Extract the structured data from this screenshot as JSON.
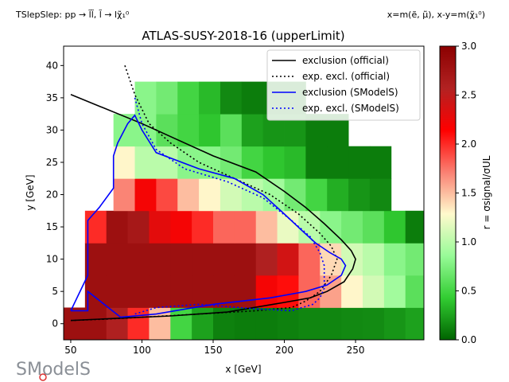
{
  "header": {
    "process": "TSlepSlep: pp → l̃l̃, l̃ → lχ̃₁⁰",
    "axis_definition": "x=m(ẽ, μ̃), x-y=m(χ̃₁⁰)"
  },
  "logo_text": "SModelS",
  "chart_data": {
    "type": "heatmap",
    "title": "ATLAS-SUSY-2018-16 (upperLimit)",
    "xlabel": "x [GeV]",
    "ylabel": "y [GeV]",
    "xlim": [
      45,
      298
    ],
    "ylim": [
      -2.5,
      43
    ],
    "xticks": [
      50,
      100,
      150,
      200,
      250
    ],
    "yticks": [
      0,
      5,
      10,
      15,
      20,
      25,
      30,
      35,
      40
    ],
    "colorbar": {
      "label": "r = σsignal/σUL",
      "range": [
        0.0,
        3.0
      ],
      "ticks": [
        "0.0",
        "0.5",
        "1.0",
        "1.5",
        "2.0",
        "2.5",
        "3.0"
      ],
      "colormap": [
        "#006400",
        "#32cd32",
        "#98fb98",
        "#fffacd",
        "#fa8072",
        "#ff0000",
        "#b22222",
        "#8b0000"
      ]
    },
    "cells": {
      "y_bins": [
        0,
        5,
        10,
        15,
        20,
        25,
        30,
        35
      ],
      "y_height": 5,
      "x_width": 15,
      "rows": [
        {
          "y": 0,
          "x_start": 45,
          "r": [
            2.8,
            2.8,
            2.6,
            2.0,
            1.5,
            0.5,
            0.25,
            0.12,
            0.1,
            0.1,
            0.12,
            0.14,
            0.14,
            0.15,
            0.16,
            0.2,
            0.25
          ]
        },
        {
          "y": 5,
          "x_start": 60,
          "r": [
            2.8,
            2.8,
            2.8,
            2.8,
            2.8,
            2.8,
            2.8,
            2.8,
            2.2,
            2.1,
            1.8,
            1.6,
            1.3,
            1.1,
            0.9,
            0.6,
            0.4
          ]
        },
        {
          "y": 10,
          "x_start": 60,
          "r": [
            2.8,
            2.8,
            2.8,
            2.8,
            2.8,
            2.8,
            2.8,
            2.8,
            2.6,
            2.4,
            1.8,
            1.4,
            1.1,
            1.0,
            0.8,
            0.7,
            0.5
          ]
        },
        {
          "y": 15,
          "x_start": 60,
          "r": [
            2.0,
            2.8,
            2.7,
            2.3,
            2.2,
            2.0,
            1.8,
            1.8,
            1.5,
            1.2,
            1.0,
            0.8,
            0.7,
            0.6,
            0.4,
            0.1
          ]
        },
        {
          "y": 20,
          "x_start": 80,
          "r": [
            1.7,
            2.2,
            1.9,
            1.5,
            1.3,
            1.1,
            1.0,
            0.9,
            0.7,
            0.5,
            0.3,
            0.2,
            0.15
          ]
        },
        {
          "y": 25,
          "x_start": 80,
          "r": [
            1.3,
            1.0,
            1.0,
            0.8,
            0.8,
            0.7,
            0.5,
            0.4,
            0.35,
            0.1,
            0.1,
            0.1,
            0.1
          ]
        },
        {
          "y": 30,
          "x_start": 80,
          "r": [
            0.8,
            0.8,
            0.6,
            0.5,
            0.4,
            0.6,
            0.25,
            0.2,
            0.2,
            0.1,
            0.1
          ]
        },
        {
          "y": 35,
          "x_start": 95,
          "r": [
            0.8,
            0.7,
            0.5,
            0.35,
            0.15,
            0.1,
            0.1,
            0.1
          ]
        }
      ]
    },
    "series": [
      {
        "name": "exclusion (official)",
        "color": "#000000",
        "style": "solid",
        "x": [
          50,
          100,
          150,
          180,
          200,
          215,
          228,
          240,
          247,
          250,
          248,
          242,
          230,
          218,
          200,
          160,
          120,
          80,
          50
        ],
        "y": [
          35.5,
          31,
          26,
          23.5,
          20.5,
          18,
          15.5,
          13,
          11.3,
          10,
          8.5,
          6.5,
          5,
          4,
          3.3,
          1.8,
          1.2,
          0.8,
          0.5
        ]
      },
      {
        "name": "exp. excl. (official)",
        "color": "#000000",
        "style": "dotted",
        "x": [
          88,
          95,
          105,
          120,
          140,
          165,
          190,
          210,
          225,
          233,
          237,
          233,
          225,
          215,
          205,
          180,
          140,
          100,
          75,
          50
        ],
        "y": [
          40,
          35.5,
          31,
          28,
          25,
          22.5,
          20,
          17,
          14,
          12,
          10,
          7.5,
          5,
          3.5,
          2.5,
          2,
          1.5,
          1,
          0.7,
          0.5
        ]
      },
      {
        "name": "exclusion (SModelS)",
        "color": "#0000ff",
        "style": "solid",
        "x": [
          50,
          62,
          62,
          70,
          80,
          80,
          83,
          90,
          95,
          100,
          110,
          140,
          165,
          185,
          200,
          212,
          222,
          232,
          240,
          243,
          240,
          230,
          215,
          190,
          150,
          110,
          85,
          62,
          62,
          50
        ],
        "y": [
          2,
          7.5,
          16,
          18,
          21,
          26,
          28,
          31,
          32.3,
          30,
          26.5,
          24,
          22.5,
          20,
          17,
          14.5,
          12.5,
          11,
          10,
          9,
          7.5,
          6,
          5,
          4,
          3,
          1.5,
          1,
          5,
          2,
          2
        ]
      },
      {
        "name": "exp. excl. (SModelS)",
        "color": "#0000ff",
        "style": "dotted",
        "x": [
          95,
          100,
          110,
          130,
          160,
          185,
          205,
          218,
          225,
          228,
          228,
          225,
          220,
          205,
          180,
          140,
          110,
          95
        ],
        "y": [
          35,
          31,
          27,
          24,
          22,
          19.5,
          16,
          13.5,
          11,
          9,
          5.5,
          4,
          3,
          2,
          2.3,
          3,
          2.5,
          1.5
        ]
      }
    ],
    "legend": {
      "placement": "top-right"
    }
  }
}
